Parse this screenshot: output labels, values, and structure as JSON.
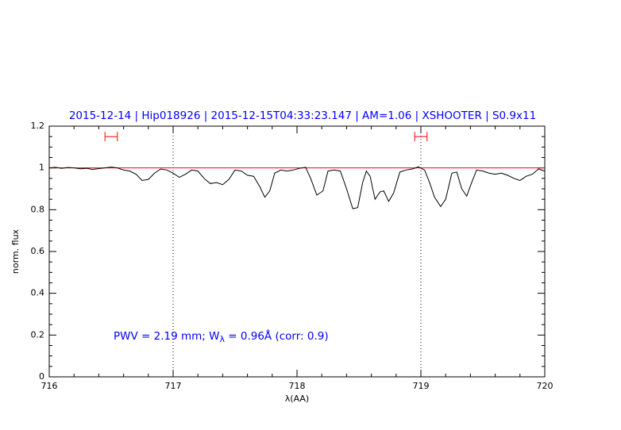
{
  "chart_data": {
    "type": "line",
    "title": "2015-12-14 | Hip018926 | 2015-12-15T04:33:23.147 | AM=1.06 | XSHOOTER | S0.9x11",
    "x_label": "λ(AA)",
    "y_label": "norm. flux",
    "annotation": [
      "PWV = 2.19 mm; W",
      "λ",
      " = 0.96Å  (corr: 0.9)"
    ],
    "xlim": [
      716,
      720
    ],
    "xticks": [
      716,
      717,
      718,
      719,
      720
    ],
    "ylim": [
      0,
      1.2
    ],
    "yticks": [
      0,
      0.2,
      0.4,
      0.6,
      0.8,
      1,
      1.2
    ],
    "vlines": [
      717,
      719
    ],
    "continuum": {
      "value": 1,
      "color": "#ff0000"
    },
    "intervals": [
      {
        "x": [
          716.45,
          716.55
        ],
        "y": 1.15
      },
      {
        "x": [
          718.95,
          719.05
        ],
        "y": 1.15
      }
    ],
    "interval_color": "#ff0000",
    "series": [
      {
        "color": "#000000",
        "x": [
          716.0,
          716.05,
          716.1,
          716.15,
          716.2,
          716.25,
          716.3,
          716.35,
          716.4,
          716.45,
          716.5,
          716.55,
          716.6,
          716.65,
          716.7,
          716.75,
          716.8,
          716.85,
          716.9,
          716.95,
          717.0,
          717.05,
          717.1,
          717.15,
          717.2,
          717.25,
          717.3,
          717.35,
          717.4,
          717.45,
          717.5,
          717.55,
          717.6,
          717.65,
          717.7,
          717.74,
          717.78,
          717.82,
          717.87,
          717.92,
          717.97,
          718.02,
          718.07,
          718.11,
          718.16,
          718.21,
          718.25,
          718.3,
          718.35,
          718.4,
          718.45,
          718.49,
          718.53,
          718.56,
          718.59,
          718.63,
          718.67,
          718.7,
          718.74,
          718.78,
          718.83,
          718.88,
          718.93,
          718.98,
          719.03,
          719.07,
          719.11,
          719.16,
          719.2,
          719.25,
          719.29,
          719.33,
          719.37,
          719.41,
          719.45,
          719.5,
          719.55,
          719.6,
          719.65,
          719.7,
          719.75,
          719.8,
          719.85,
          719.9,
          719.95,
          720.0
        ],
        "values": [
          1.0,
          1.003,
          0.998,
          1.002,
          1.0,
          0.996,
          0.998,
          0.993,
          0.997,
          1.0,
          1.004,
          1.0,
          0.99,
          0.985,
          0.97,
          0.94,
          0.945,
          0.975,
          0.995,
          0.99,
          0.975,
          0.955,
          0.97,
          0.99,
          0.985,
          0.95,
          0.925,
          0.93,
          0.92,
          0.945,
          0.99,
          0.985,
          0.965,
          0.96,
          0.91,
          0.86,
          0.89,
          0.975,
          0.99,
          0.985,
          0.99,
          0.998,
          1.003,
          0.95,
          0.87,
          0.89,
          0.985,
          0.99,
          0.985,
          0.9,
          0.805,
          0.81,
          0.93,
          0.985,
          0.96,
          0.85,
          0.885,
          0.89,
          0.84,
          0.88,
          0.98,
          0.99,
          0.995,
          1.005,
          0.99,
          0.93,
          0.86,
          0.815,
          0.85,
          0.975,
          0.98,
          0.9,
          0.865,
          0.93,
          0.99,
          0.985,
          0.975,
          0.97,
          0.975,
          0.965,
          0.95,
          0.94,
          0.96,
          0.97,
          0.995,
          0.985
        ]
      }
    ]
  }
}
